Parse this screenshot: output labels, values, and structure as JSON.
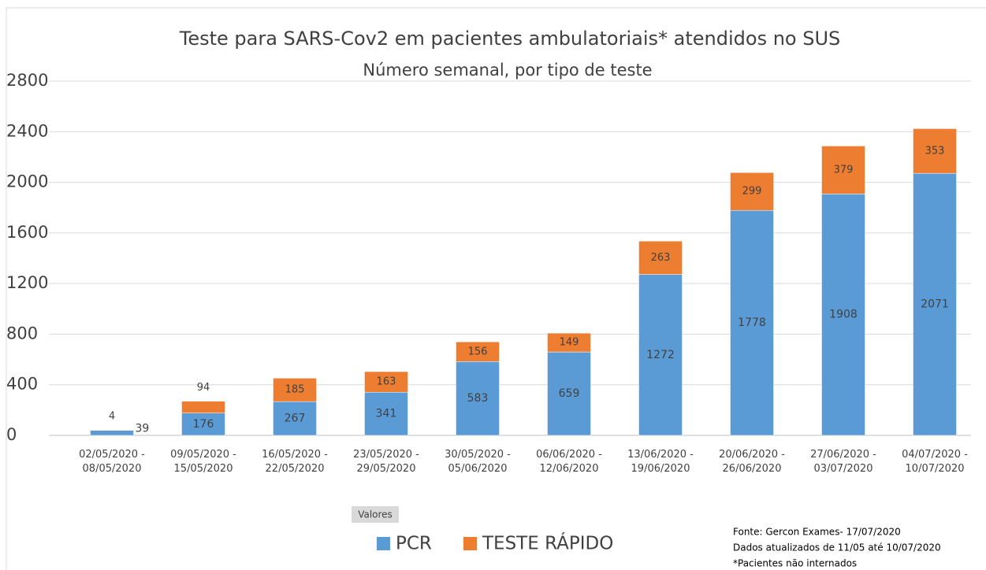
{
  "chart_data": {
    "type": "stacked_bar",
    "title": "Teste para SARS-Cov2 em pacientes ambulatoriais* atendidos no SUS",
    "subtitle": "Número semanal, por tipo de teste",
    "categories": [
      "02/05/2020 - 08/05/2020",
      "09/05/2020 - 15/05/2020",
      "16/05/2020 - 22/05/2020",
      "23/05/2020 - 29/05/2020",
      "30/05/2020 - 05/06/2020",
      "06/06/2020 - 12/06/2020",
      "13/06/2020 - 19/06/2020",
      "20/06/2020 - 26/06/2020",
      "27/06/2020 - 03/07/2020",
      "04/07/2020 - 10/07/2020"
    ],
    "series": [
      {
        "name": "PCR",
        "color": "#5b9bd5",
        "values": [
          39,
          176,
          267,
          341,
          583,
          659,
          1272,
          1778,
          1908,
          2071
        ]
      },
      {
        "name": "TESTE RÁPIDO",
        "color": "#ed7d31",
        "values": [
          4,
          94,
          185,
          163,
          156,
          149,
          263,
          299,
          379,
          353
        ]
      }
    ],
    "ylim": [
      0,
      2800
    ],
    "yticks": [
      0,
      400,
      800,
      1200,
      1600,
      2000,
      2400,
      2800
    ],
    "grid": true,
    "filter_button": "Valores",
    "legend": "bottom",
    "notes": [
      "Fonte: Gercon Exames- 17/07/2020",
      "Dados atualizados de 11/05 até 10/07/2020",
      "*Pacientes não internados"
    ]
  }
}
